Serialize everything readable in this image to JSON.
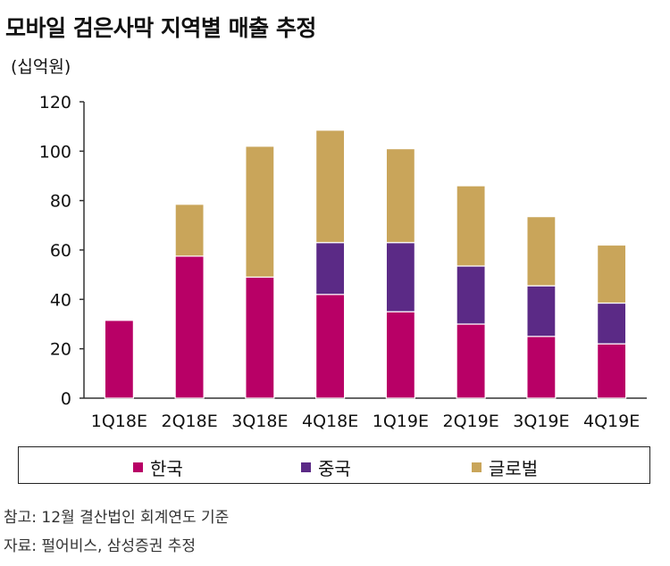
{
  "title": "모바일 검은사막 지역별 매출 추정",
  "unit": "(십억원)",
  "colors": {
    "korea": "#b80066",
    "china": "#5b2a86",
    "global": "#c9a55a",
    "axis": "#333333"
  },
  "chart_data": {
    "type": "bar",
    "stacked": true,
    "categories": [
      "1Q18E",
      "2Q18E",
      "3Q18E",
      "4Q18E",
      "1Q19E",
      "2Q19E",
      "3Q19E",
      "4Q19E"
    ],
    "series": [
      {
        "name": "한국",
        "values": [
          31.5,
          57.5,
          49,
          42,
          35,
          30,
          25,
          22
        ]
      },
      {
        "name": "중국",
        "values": [
          0,
          0,
          0,
          21,
          28,
          23.5,
          20.5,
          16.5
        ]
      },
      {
        "name": "글로벌",
        "values": [
          0,
          21,
          53,
          45.5,
          38,
          32.5,
          28,
          23.5
        ]
      }
    ],
    "ylim": [
      0,
      120
    ],
    "yticks": [
      0,
      20,
      40,
      60,
      80,
      100,
      120
    ],
    "ylabel": "(십억원)",
    "legend_position": "bottom"
  },
  "legend": {
    "items": [
      "한국",
      "중국",
      "글로벌"
    ]
  },
  "notes": {
    "note1": "참고: 12월 결산법인 회계연도 기준",
    "note2": "자료: 펄어비스, 삼성증권 추정"
  }
}
